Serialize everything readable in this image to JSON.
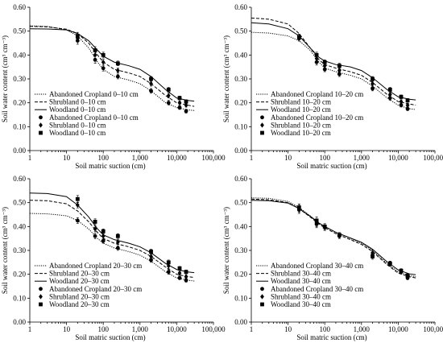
{
  "figure": {
    "background": "#ffffff",
    "ink_color": "#000000"
  },
  "chart_data": [
    {
      "type": "line",
      "panel": "top-left",
      "xscale": "log",
      "xlim": [
        1,
        100000
      ],
      "ylim": [
        0,
        0.6
      ],
      "xticks": [
        "1",
        "10",
        "100",
        "1,000",
        "10,000",
        "100,000"
      ],
      "yticks": [
        "0.00",
        "0.10",
        "0.20",
        "0.30",
        "0.40",
        "0.50",
        "0.60"
      ],
      "xlabel": "Soil matric suction (cm)",
      "ylabel": "Soil water content (cm³ cm⁻³)",
      "legend_position": "bottom-left",
      "series": [
        {
          "name": "Abandoned Cropland 0–10 cm",
          "kind": "fit",
          "style": "dotted",
          "x": [
            1,
            3,
            10,
            20,
            40,
            70,
            100,
            200,
            500,
            1000,
            2000,
            5000,
            10000,
            20000,
            30000
          ],
          "y": [
            0.522,
            0.52,
            0.505,
            0.48,
            0.43,
            0.37,
            0.34,
            0.31,
            0.295,
            0.28,
            0.25,
            0.2,
            0.18,
            0.17,
            0.168
          ]
        },
        {
          "name": "Shrubland 0–10 cm",
          "kind": "fit",
          "style": "dashed",
          "x": [
            1,
            3,
            10,
            20,
            40,
            70,
            100,
            200,
            500,
            1000,
            2000,
            5000,
            10000,
            20000,
            30000
          ],
          "y": [
            0.52,
            0.518,
            0.508,
            0.49,
            0.45,
            0.4,
            0.37,
            0.34,
            0.325,
            0.31,
            0.28,
            0.23,
            0.2,
            0.19,
            0.185
          ]
        },
        {
          "name": "Woodland 0–10 cm",
          "kind": "fit",
          "style": "solid",
          "x": [
            1,
            3,
            10,
            20,
            40,
            70,
            100,
            200,
            500,
            1000,
            2000,
            5000,
            10000,
            20000,
            30000
          ],
          "y": [
            0.51,
            0.509,
            0.505,
            0.49,
            0.46,
            0.42,
            0.395,
            0.37,
            0.355,
            0.34,
            0.31,
            0.255,
            0.22,
            0.21,
            0.207
          ]
        },
        {
          "name": "Abandoned Cropland 0–10 cm",
          "kind": "observed",
          "marker": "circle",
          "x": [
            20,
            60,
            100,
            250,
            2000,
            6000,
            12000,
            18000
          ],
          "y": [
            0.46,
            0.38,
            0.345,
            0.31,
            0.25,
            0.2,
            0.18,
            0.165
          ],
          "err": [
            0.015,
            0.015,
            0.012,
            0.01,
            0.01,
            0.01,
            0.008,
            0.008
          ]
        },
        {
          "name": "Shrubland 0–10 cm",
          "kind": "observed",
          "marker": "diamond",
          "x": [
            20,
            60,
            100,
            250,
            2000,
            6000,
            12000,
            18000
          ],
          "y": [
            0.47,
            0.4,
            0.37,
            0.335,
            0.28,
            0.23,
            0.2,
            0.19
          ],
          "err": [
            0.015,
            0.015,
            0.012,
            0.01,
            0.01,
            0.01,
            0.008,
            0.008
          ]
        },
        {
          "name": "Woodland 0–10 cm",
          "kind": "observed",
          "marker": "square",
          "x": [
            20,
            60,
            100,
            250,
            2000,
            6000,
            12000,
            18000
          ],
          "y": [
            0.48,
            0.42,
            0.4,
            0.365,
            0.3,
            0.255,
            0.22,
            0.205
          ],
          "err": [
            0.015,
            0.015,
            0.012,
            0.01,
            0.01,
            0.01,
            0.008,
            0.008
          ]
        }
      ]
    },
    {
      "type": "line",
      "panel": "top-right",
      "xscale": "log",
      "xlim": [
        1,
        100000
      ],
      "ylim": [
        0,
        0.6
      ],
      "xticks": [
        "1",
        "10",
        "100",
        "1,000",
        "10,000",
        "100,000"
      ],
      "yticks": [
        "0.00",
        "0.10",
        "0.20",
        "0.30",
        "0.40",
        "0.50",
        "0.60"
      ],
      "xlabel": "Soil matric suction (cm)",
      "ylabel": "Soil water content (cm³ cm⁻³)",
      "legend_position": "bottom-left",
      "series": [
        {
          "name": "Abandoned Cropland 10–20 cm",
          "kind": "fit",
          "style": "dotted",
          "x": [
            1,
            3,
            10,
            20,
            40,
            70,
            100,
            200,
            500,
            1000,
            2000,
            5000,
            10000,
            20000,
            30000
          ],
          "y": [
            0.495,
            0.492,
            0.48,
            0.46,
            0.42,
            0.37,
            0.345,
            0.33,
            0.315,
            0.3,
            0.27,
            0.22,
            0.19,
            0.175,
            0.172
          ]
        },
        {
          "name": "Shrubland 10–20 cm",
          "kind": "fit",
          "style": "dashed",
          "x": [
            1,
            3,
            10,
            20,
            40,
            70,
            100,
            200,
            500,
            1000,
            2000,
            5000,
            10000,
            20000,
            30000
          ],
          "y": [
            0.555,
            0.55,
            0.53,
            0.49,
            0.43,
            0.38,
            0.36,
            0.345,
            0.33,
            0.315,
            0.285,
            0.235,
            0.205,
            0.195,
            0.19
          ]
        },
        {
          "name": "Woodland 10–20 cm",
          "kind": "fit",
          "style": "solid",
          "x": [
            1,
            3,
            10,
            20,
            40,
            70,
            100,
            200,
            500,
            1000,
            2000,
            5000,
            10000,
            20000,
            30000
          ],
          "y": [
            0.535,
            0.53,
            0.51,
            0.48,
            0.43,
            0.39,
            0.375,
            0.36,
            0.35,
            0.335,
            0.305,
            0.255,
            0.225,
            0.215,
            0.212
          ]
        },
        {
          "name": "Abandoned Cropland 10–20 cm",
          "kind": "observed",
          "marker": "circle",
          "x": [
            20,
            60,
            100,
            250,
            2000,
            6000,
            12000,
            18000
          ],
          "y": [
            0.47,
            0.37,
            0.34,
            0.32,
            0.26,
            0.22,
            0.19,
            0.175
          ],
          "err": [
            0.012,
            0.012,
            0.01,
            0.01,
            0.01,
            0.01,
            0.008,
            0.008
          ]
        },
        {
          "name": "Shrubland 10–20 cm",
          "kind": "observed",
          "marker": "diamond",
          "x": [
            20,
            60,
            100,
            250,
            2000,
            6000,
            12000,
            18000
          ],
          "y": [
            0.475,
            0.385,
            0.355,
            0.335,
            0.28,
            0.235,
            0.205,
            0.19
          ],
          "err": [
            0.012,
            0.012,
            0.01,
            0.01,
            0.01,
            0.01,
            0.008,
            0.008
          ]
        },
        {
          "name": "Woodland 10–20 cm",
          "kind": "observed",
          "marker": "square",
          "x": [
            20,
            60,
            100,
            250,
            2000,
            6000,
            12000,
            18000
          ],
          "y": [
            0.475,
            0.4,
            0.37,
            0.355,
            0.3,
            0.255,
            0.225,
            0.21
          ],
          "err": [
            0.012,
            0.012,
            0.01,
            0.01,
            0.01,
            0.01,
            0.008,
            0.008
          ]
        }
      ]
    },
    {
      "type": "line",
      "panel": "bottom-left",
      "xscale": "log",
      "xlim": [
        1,
        100000
      ],
      "ylim": [
        0,
        0.6
      ],
      "xticks": [
        "1",
        "10",
        "100",
        "1,000",
        "10,000",
        "100,000"
      ],
      "yticks": [
        "0.00",
        "0.10",
        "0.20",
        "0.30",
        "0.40",
        "0.50",
        "0.60"
      ],
      "xlabel": "Soil matric suction (cm)",
      "ylabel": "Soil water content (cm³ cm⁻³)",
      "legend_position": "bottom-left",
      "series": [
        {
          "name": "Abandoned Cropland 20–30 cm",
          "kind": "fit",
          "style": "dotted",
          "x": [
            1,
            3,
            10,
            20,
            40,
            70,
            100,
            200,
            500,
            1000,
            2000,
            5000,
            10000,
            20000,
            30000
          ],
          "y": [
            0.455,
            0.453,
            0.445,
            0.425,
            0.39,
            0.35,
            0.33,
            0.31,
            0.295,
            0.28,
            0.255,
            0.21,
            0.185,
            0.175,
            0.172
          ]
        },
        {
          "name": "Shrubland 20–30 cm",
          "kind": "fit",
          "style": "dashed",
          "x": [
            1,
            3,
            10,
            20,
            40,
            70,
            100,
            200,
            500,
            1000,
            2000,
            5000,
            10000,
            20000,
            30000
          ],
          "y": [
            0.51,
            0.508,
            0.495,
            0.465,
            0.42,
            0.375,
            0.35,
            0.33,
            0.315,
            0.3,
            0.275,
            0.23,
            0.2,
            0.19,
            0.187
          ]
        },
        {
          "name": "Woodland 20–30 cm",
          "kind": "fit",
          "style": "solid",
          "x": [
            1,
            3,
            10,
            20,
            40,
            70,
            100,
            200,
            500,
            1000,
            2000,
            5000,
            10000,
            20000,
            30000
          ],
          "y": [
            0.54,
            0.538,
            0.525,
            0.49,
            0.44,
            0.39,
            0.365,
            0.345,
            0.33,
            0.315,
            0.29,
            0.245,
            0.22,
            0.21,
            0.207
          ]
        },
        {
          "name": "Abandoned Cropland 20–30 cm",
          "kind": "observed",
          "marker": "circle",
          "x": [
            20,
            60,
            100,
            250,
            2000,
            6000,
            12000,
            18000
          ],
          "y": [
            0.425,
            0.36,
            0.34,
            0.31,
            0.26,
            0.21,
            0.185,
            0.175
          ],
          "err": [
            0.012,
            0.012,
            0.01,
            0.01,
            0.01,
            0.01,
            0.008,
            0.008
          ]
        },
        {
          "name": "Shrubland 20–30 cm",
          "kind": "observed",
          "marker": "diamond",
          "x": [
            20,
            60,
            100,
            250,
            2000,
            6000,
            12000,
            18000
          ],
          "y": [
            0.49,
            0.39,
            0.36,
            0.335,
            0.275,
            0.235,
            0.205,
            0.19
          ],
          "err": [
            0.012,
            0.012,
            0.01,
            0.01,
            0.01,
            0.01,
            0.008,
            0.008
          ]
        },
        {
          "name": "Woodland 20–30 cm",
          "kind": "observed",
          "marker": "square",
          "x": [
            20,
            60,
            100,
            250,
            2000,
            6000,
            12000,
            18000
          ],
          "y": [
            0.515,
            0.42,
            0.38,
            0.36,
            0.295,
            0.25,
            0.225,
            0.21
          ],
          "err": [
            0.015,
            0.012,
            0.01,
            0.01,
            0.01,
            0.01,
            0.008,
            0.008
          ]
        }
      ]
    },
    {
      "type": "line",
      "panel": "bottom-right",
      "xscale": "log",
      "xlim": [
        1,
        100000
      ],
      "ylim": [
        0,
        0.6
      ],
      "xticks": [
        "1",
        "10",
        "100",
        "1,000",
        "10,000",
        "100,000"
      ],
      "yticks": [
        "0.00",
        "0.10",
        "0.20",
        "0.30",
        "0.40",
        "0.50",
        "0.60"
      ],
      "xlabel": "Soil matric suction (cm)",
      "ylabel": "Soil water content (cm³ cm⁻³)",
      "legend_position": "bottom-left",
      "series": [
        {
          "name": "Abandoned Cropland 30–40 cm",
          "kind": "fit",
          "style": "dotted",
          "x": [
            1,
            3,
            10,
            20,
            40,
            70,
            100,
            200,
            500,
            1000,
            2000,
            5000,
            10000,
            20000,
            30000
          ],
          "y": [
            0.52,
            0.518,
            0.505,
            0.48,
            0.445,
            0.415,
            0.4,
            0.375,
            0.35,
            0.33,
            0.3,
            0.245,
            0.21,
            0.195,
            0.19
          ]
        },
        {
          "name": "Shrubland 30–40 cm",
          "kind": "fit",
          "style": "dashed",
          "x": [
            1,
            3,
            10,
            20,
            40,
            70,
            100,
            200,
            500,
            1000,
            2000,
            5000,
            10000,
            20000,
            30000
          ],
          "y": [
            0.515,
            0.512,
            0.5,
            0.475,
            0.44,
            0.41,
            0.395,
            0.37,
            0.345,
            0.325,
            0.295,
            0.24,
            0.205,
            0.19,
            0.185
          ]
        },
        {
          "name": "Woodland 30–40 cm",
          "kind": "fit",
          "style": "solid",
          "x": [
            1,
            3,
            10,
            20,
            40,
            70,
            100,
            200,
            500,
            1000,
            2000,
            5000,
            10000,
            20000,
            30000
          ],
          "y": [
            0.51,
            0.508,
            0.498,
            0.475,
            0.443,
            0.414,
            0.4,
            0.376,
            0.352,
            0.334,
            0.305,
            0.252,
            0.218,
            0.202,
            0.198
          ]
        },
        {
          "name": "Abandoned Cropland 30–40 cm",
          "kind": "observed",
          "marker": "circle",
          "x": [
            20,
            60,
            100,
            250,
            2000,
            6000,
            12000,
            18000
          ],
          "y": [
            0.47,
            0.41,
            0.4,
            0.36,
            0.28,
            0.245,
            0.21,
            0.185
          ],
          "err": [
            0.015,
            0.015,
            0.012,
            0.01,
            0.012,
            0.01,
            0.008,
            0.008
          ]
        },
        {
          "name": "Shrubland 30–40 cm",
          "kind": "observed",
          "marker": "diamond",
          "x": [
            20,
            60,
            100,
            250,
            2000,
            6000,
            12000,
            18000
          ],
          "y": [
            0.475,
            0.415,
            0.395,
            0.36,
            0.29,
            0.245,
            0.215,
            0.19
          ],
          "err": [
            0.015,
            0.015,
            0.012,
            0.01,
            0.012,
            0.01,
            0.008,
            0.008
          ]
        },
        {
          "name": "Woodland 30–40 cm",
          "kind": "observed",
          "marker": "square",
          "x": [
            20,
            60,
            100,
            250,
            2000,
            6000,
            12000,
            18000
          ],
          "y": [
            0.48,
            0.425,
            0.4,
            0.365,
            0.275,
            0.245,
            0.215,
            0.195
          ],
          "err": [
            0.015,
            0.015,
            0.012,
            0.01,
            0.012,
            0.01,
            0.008,
            0.008
          ]
        }
      ]
    }
  ]
}
